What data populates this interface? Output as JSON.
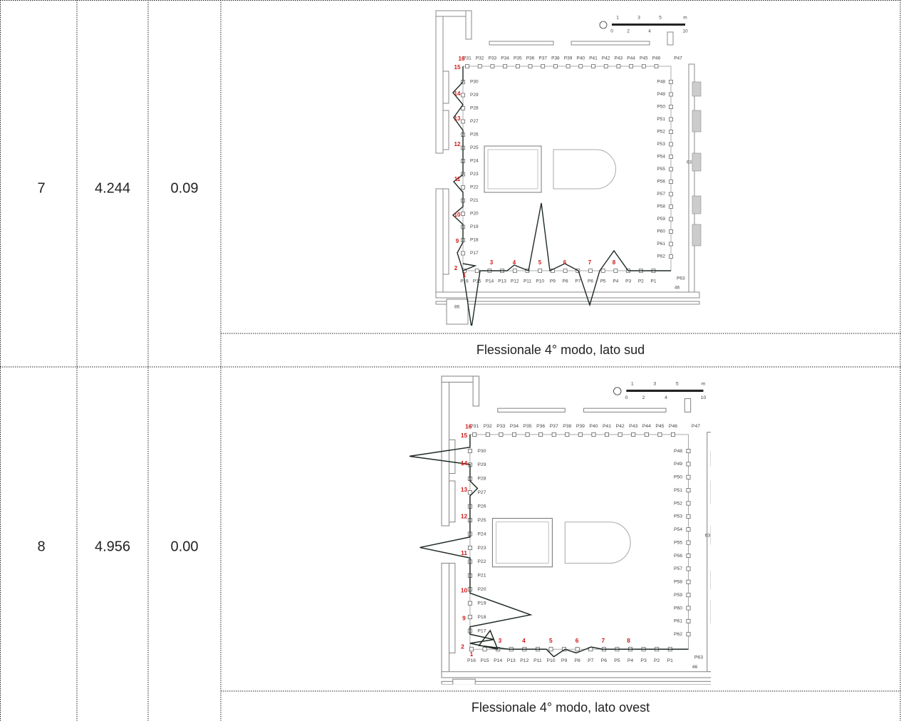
{
  "table": {
    "rows": [
      {
        "mode": "7",
        "frequency": "4.244",
        "mass": "0.09",
        "caption": "Flessionale 4° modo, lato sud"
      },
      {
        "mode": "8",
        "frequency": "4.956",
        "mass": "0.00",
        "caption": "Flessionale 4° modo, lato ovest"
      }
    ]
  },
  "plan": {
    "top": [
      "P31",
      "P32",
      "P33",
      "P34",
      "P35",
      "P36",
      "P37",
      "P38",
      "P39",
      "P40",
      "P41",
      "P42",
      "P43",
      "P44",
      "P45",
      "P46"
    ],
    "left": [
      "P30",
      "P29",
      "P28",
      "P27",
      "P26",
      "P25",
      "P24",
      "P23",
      "P22",
      "P21",
      "P20",
      "P19",
      "P18",
      "P17"
    ],
    "right": [
      "P48",
      "P49",
      "P50",
      "P51",
      "P52",
      "P53",
      "P54",
      "P55",
      "P56",
      "P57",
      "P58",
      "P59",
      "P60",
      "P61",
      "P62"
    ],
    "bottom": [
      "P16",
      "P15",
      "P14",
      "P13",
      "P12",
      "P11",
      "P10",
      "P9",
      "P8",
      "P7",
      "P6",
      "P5",
      "P4",
      "P3",
      "P2",
      "P1"
    ],
    "corner": [
      "P47",
      "P63"
    ],
    "markers": [
      "1",
      "2",
      "3",
      "4",
      "5",
      "6",
      "7",
      "8",
      "9",
      "10",
      "11",
      "12",
      "13",
      "14",
      "15",
      "16"
    ],
    "scale": [
      "0",
      "1",
      "2",
      "3",
      "4",
      "5",
      "10",
      "m"
    ],
    "rooms": [
      "63",
      "46",
      "86"
    ]
  }
}
